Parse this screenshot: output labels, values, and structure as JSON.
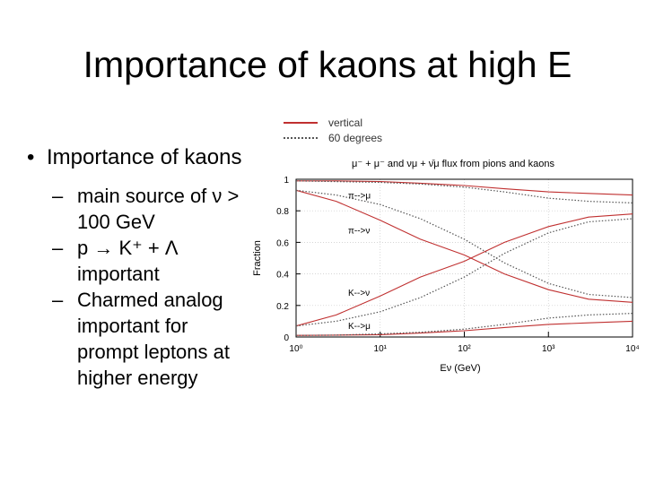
{
  "slide": {
    "title": "Importance of kaons at high E",
    "bullet": "Importance of kaons",
    "subbullets": [
      "main source of ν > 100 GeV",
      "p → K⁺ + Λ important",
      "Charmed analog important for prompt leptons at higher energy"
    ],
    "bullet_marker": "•",
    "sub_marker": "–"
  },
  "legend": {
    "items": [
      {
        "label": "vertical",
        "style": "solid",
        "color": "#c03030"
      },
      {
        "label": "60 degrees",
        "style": "dotted",
        "color": "#555555"
      }
    ]
  },
  "chart_data": {
    "type": "line",
    "title": "μ⁻ + μ⁻ and νμ + ν̄μ flux from pions and kaons",
    "xlabel": "Eν (GeV)",
    "ylabel": "Fraction",
    "x_scale": "log",
    "xlim": [
      1,
      10000
    ],
    "ylim": [
      0,
      1
    ],
    "x_ticks": [
      1,
      10,
      100,
      1000,
      10000
    ],
    "x_tick_labels": [
      "10⁰",
      "10¹",
      "10²",
      "10³",
      "10⁴"
    ],
    "y_ticks": [
      0,
      0.2,
      0.4,
      0.6,
      0.8,
      1
    ],
    "y_tick_labels": [
      "0",
      "0.2",
      "0.4",
      "0.6",
      "0.8",
      "1"
    ],
    "grid": true,
    "annotations": [
      "π-->μ",
      "π-->ν",
      "K-->ν",
      "K-->μ"
    ],
    "series": [
      {
        "group": "π-->μ",
        "style": "solid",
        "color": "#c03030",
        "x": [
          1,
          3,
          10,
          30,
          100,
          300,
          1000,
          3000,
          10000
        ],
        "y": [
          0.99,
          0.99,
          0.985,
          0.975,
          0.96,
          0.94,
          0.92,
          0.91,
          0.9
        ]
      },
      {
        "group": "π-->μ",
        "style": "dotted",
        "color": "#555555",
        "x": [
          1,
          3,
          10,
          30,
          100,
          300,
          1000,
          3000,
          10000
        ],
        "y": [
          0.99,
          0.985,
          0.98,
          0.97,
          0.95,
          0.92,
          0.88,
          0.86,
          0.85
        ]
      },
      {
        "group": "π-->ν",
        "style": "solid",
        "color": "#c03030",
        "x": [
          1,
          3,
          10,
          30,
          100,
          300,
          1000,
          3000,
          10000
        ],
        "y": [
          0.93,
          0.86,
          0.74,
          0.62,
          0.52,
          0.4,
          0.3,
          0.24,
          0.22
        ]
      },
      {
        "group": "π-->ν",
        "style": "dotted",
        "color": "#555555",
        "x": [
          1,
          3,
          10,
          30,
          100,
          300,
          1000,
          3000,
          10000
        ],
        "y": [
          0.93,
          0.9,
          0.84,
          0.75,
          0.62,
          0.47,
          0.34,
          0.27,
          0.25
        ]
      },
      {
        "group": "K-->ν",
        "style": "solid",
        "color": "#c03030",
        "x": [
          1,
          3,
          10,
          30,
          100,
          300,
          1000,
          3000,
          10000
        ],
        "y": [
          0.07,
          0.14,
          0.26,
          0.38,
          0.48,
          0.6,
          0.7,
          0.76,
          0.78
        ]
      },
      {
        "group": "K-->ν",
        "style": "dotted",
        "color": "#555555",
        "x": [
          1,
          3,
          10,
          30,
          100,
          300,
          1000,
          3000,
          10000
        ],
        "y": [
          0.07,
          0.1,
          0.16,
          0.25,
          0.38,
          0.53,
          0.66,
          0.73,
          0.75
        ]
      },
      {
        "group": "K-->μ",
        "style": "solid",
        "color": "#c03030",
        "x": [
          1,
          3,
          10,
          30,
          100,
          300,
          1000,
          3000,
          10000
        ],
        "y": [
          0.01,
          0.012,
          0.015,
          0.025,
          0.04,
          0.06,
          0.08,
          0.09,
          0.1
        ]
      },
      {
        "group": "K-->μ",
        "style": "dotted",
        "color": "#555555",
        "x": [
          1,
          3,
          10,
          30,
          100,
          300,
          1000,
          3000,
          10000
        ],
        "y": [
          0.01,
          0.012,
          0.02,
          0.03,
          0.05,
          0.08,
          0.12,
          0.14,
          0.15
        ]
      }
    ]
  }
}
